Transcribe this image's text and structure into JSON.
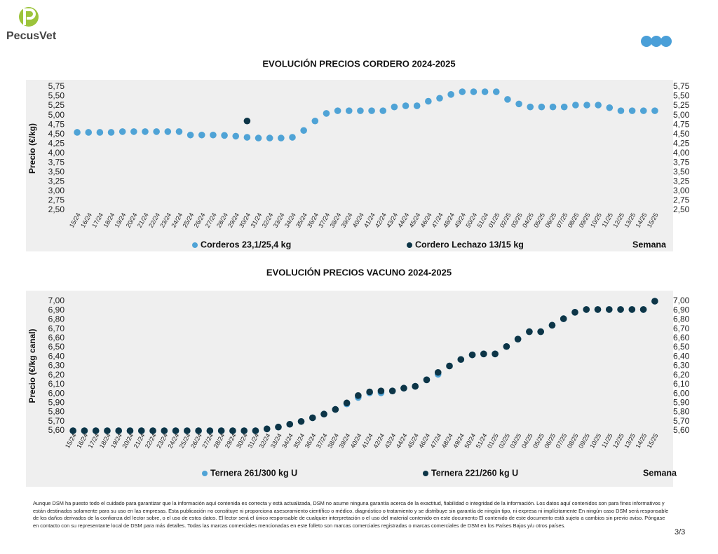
{
  "header": {
    "logo_text": "PecusVet"
  },
  "chart_data": [
    {
      "type": "scatter",
      "title": "EVOLUCIÓN PRECIOS CORDERO 2024-2025",
      "y_label": "Precio (€/kg)",
      "x_label": "Semana",
      "categories": [
        "15/24",
        "16/24",
        "17/24",
        "18/24",
        "19/24",
        "20/24",
        "21/24",
        "22/24",
        "23/24",
        "24/24",
        "25/24",
        "26/24",
        "27/24",
        "28/24",
        "29/24",
        "30/24",
        "31/24",
        "32/24",
        "33/24",
        "34/24",
        "35/24",
        "36/24",
        "37/24",
        "38/24",
        "39/24",
        "40/24",
        "41/24",
        "42/24",
        "43/24",
        "44/24",
        "45/24",
        "46/24",
        "47/24",
        "48/24",
        "49/24",
        "50/24",
        "51/24",
        "01/25",
        "02/25",
        "03/25",
        "04/25",
        "05/25",
        "06/25",
        "07/25",
        "08/25",
        "09/25",
        "10/25",
        "11/25",
        "12/25",
        "13/25",
        "14/25",
        "15/25"
      ],
      "series": [
        {
          "name": "Corderos 23,1/25,4 kg",
          "color": "#4fa3d6",
          "values": [
            4.55,
            4.55,
            4.55,
            4.55,
            4.57,
            4.57,
            4.57,
            4.57,
            4.57,
            4.57,
            4.48,
            4.48,
            4.48,
            4.47,
            4.45,
            4.42,
            4.4,
            4.4,
            4.4,
            4.42,
            4.6,
            4.85,
            5.05,
            5.12,
            5.12,
            5.12,
            5.12,
            5.12,
            5.22,
            5.25,
            5.25,
            5.37,
            5.45,
            5.55,
            5.62,
            5.62,
            5.62,
            5.62,
            5.42,
            5.3,
            5.22,
            5.22,
            5.22,
            5.22,
            5.27,
            5.27,
            5.27,
            5.2,
            5.12,
            5.12,
            5.12,
            5.12
          ]
        },
        {
          "name": "Cordero Lechazo 13/15 kg",
          "color": "#0d3547",
          "values": [
            null,
            null,
            null,
            null,
            null,
            null,
            null,
            null,
            null,
            null,
            null,
            null,
            null,
            null,
            null,
            4.85,
            null,
            null,
            null,
            null,
            null,
            null,
            null,
            null,
            null,
            null,
            null,
            null,
            null,
            null,
            null,
            null,
            null,
            null,
            null,
            null,
            null,
            null,
            null,
            null,
            null,
            null,
            null,
            null,
            null,
            null,
            null,
            null,
            null,
            null,
            null,
            null
          ]
        }
      ],
      "ylim": [
        2.5,
        5.75
      ],
      "yticks": [
        {
          "value": 2.5,
          "label": "2,50"
        },
        {
          "value": 2.75,
          "label": "2,75"
        },
        {
          "value": 3,
          "label": "3,00"
        },
        {
          "value": 3.25,
          "label": "3,25"
        },
        {
          "value": 3.5,
          "label": "3,50"
        },
        {
          "value": 3.75,
          "label": "3,75"
        },
        {
          "value": 4,
          "label": "4,00"
        },
        {
          "value": 4.25,
          "label": "4,25"
        },
        {
          "value": 4.5,
          "label": "4,50"
        },
        {
          "value": 4.75,
          "label": "4,75"
        },
        {
          "value": 5,
          "label": "5,00"
        },
        {
          "value": 5.25,
          "label": "5,25"
        },
        {
          "value": 5.5,
          "label": "5,50"
        },
        {
          "value": 5.75,
          "label": "5,75"
        }
      ]
    },
    {
      "type": "scatter",
      "title": "EVOLUCIÓN PRECIOS VACUNO 2024-2025",
      "y_label": "Precio (€/kg canal)",
      "x_label": "Semana",
      "categories": [
        "15/24",
        "16/24",
        "17/24",
        "18/24",
        "19/24",
        "20/24",
        "21/24",
        "22/24",
        "23/24",
        "24/24",
        "25/24",
        "26/24",
        "27/24",
        "28/24",
        "29/24",
        "30/24",
        "31/24",
        "32/24",
        "33/24",
        "34/24",
        "35/24",
        "36/24",
        "37/24",
        "38/24",
        "39/24",
        "40/24",
        "41/24",
        "42/24",
        "43/24",
        "44/24",
        "45/24",
        "46/24",
        "47/24",
        "48/24",
        "49/24",
        "50/24",
        "51/24",
        "01/25",
        "02/25",
        "03/25",
        "04/25",
        "05/25",
        "06/25",
        "07/25",
        "08/25",
        "09/25",
        "10/25",
        "11/25",
        "12/25",
        "13/25",
        "14/25",
        "15/25"
      ],
      "series": [
        {
          "name": "Ternera 261/300 kg U",
          "color": "#4fa3d6",
          "values": [
            5.6,
            5.6,
            5.6,
            5.6,
            5.6,
            5.6,
            5.6,
            5.6,
            5.6,
            5.6,
            5.6,
            5.6,
            5.6,
            5.6,
            5.6,
            5.6,
            5.6,
            5.62,
            5.64,
            5.67,
            5.7,
            5.74,
            5.78,
            5.83,
            5.89,
            5.96,
            6.01,
            6.01,
            6.03,
            6.06,
            6.08,
            6.15,
            6.21,
            6.3,
            6.37,
            6.42,
            6.43,
            6.43,
            6.51,
            6.59,
            6.67,
            6.67,
            6.74,
            6.81,
            6.88,
            6.91,
            6.91,
            6.91,
            6.91,
            6.91,
            6.91,
            7.0
          ]
        },
        {
          "name": "Ternera 221/260 kg U",
          "color": "#0d3547",
          "values": [
            5.6,
            5.6,
            5.6,
            5.6,
            5.6,
            5.6,
            5.6,
            5.6,
            5.6,
            5.6,
            5.6,
            5.6,
            5.6,
            5.6,
            5.6,
            5.6,
            5.6,
            5.62,
            5.64,
            5.67,
            5.7,
            5.74,
            5.78,
            5.83,
            5.9,
            5.98,
            6.02,
            6.03,
            6.03,
            6.06,
            6.08,
            6.15,
            6.23,
            6.3,
            6.37,
            6.42,
            6.43,
            6.43,
            6.51,
            6.59,
            6.67,
            6.67,
            6.74,
            6.81,
            6.88,
            6.91,
            6.91,
            6.91,
            6.91,
            6.91,
            6.91,
            7.0
          ]
        }
      ],
      "ylim": [
        5.6,
        7.0
      ],
      "yticks": [
        {
          "value": 5.6,
          "label": "5,60"
        },
        {
          "value": 5.7,
          "label": "5,70"
        },
        {
          "value": 5.8,
          "label": "5,80"
        },
        {
          "value": 5.9,
          "label": "5,90"
        },
        {
          "value": 6.0,
          "label": "6,00"
        },
        {
          "value": 6.1,
          "label": "6,10"
        },
        {
          "value": 6.2,
          "label": "6,20"
        },
        {
          "value": 6.3,
          "label": "6,30"
        },
        {
          "value": 6.4,
          "label": "6,40"
        },
        {
          "value": 6.5,
          "label": "6,50"
        },
        {
          "value": 6.6,
          "label": "6,60"
        },
        {
          "value": 6.7,
          "label": "6,70"
        },
        {
          "value": 6.8,
          "label": "6,80"
        },
        {
          "value": 6.9,
          "label": "6,90"
        },
        {
          "value": 7.0,
          "label": "7,00"
        }
      ]
    }
  ],
  "footer": {
    "disclaimer": "Aunque DSM ha puesto todo el cuidado para garantizar que la información aquí contenida es correcta y está actualizada, DSM no asume ninguna garantía acerca de la exactitud, fiabilidad o integridad de la información. Los datos aquí contenidos son para fines informativos y están destinados solamente para su uso en las empresas. Esta publicación no constituye ni proporciona asesoramiento científico o médico, diagnóstico o tratamiento y se distribuye sin garantía de ningún tipo, ni expresa ni implícitamente En ningún caso DSM será responsable de los daños derivados de la confianza del lector sobre, o el uso de estos datos. El lector será el único responsable de cualquier interpretación o el uso del material contenido en este documento El contenido de este documento está sujeto a cambios sin previo aviso. Póngase en contacto con su representante local de DSM para más detalles. Todas las marcas comerciales mencionadas en este folleto son marcas comerciales registradas o marcas comerciales de DSM en los Países Bajos y/u otros países.",
    "page": "3/3"
  }
}
